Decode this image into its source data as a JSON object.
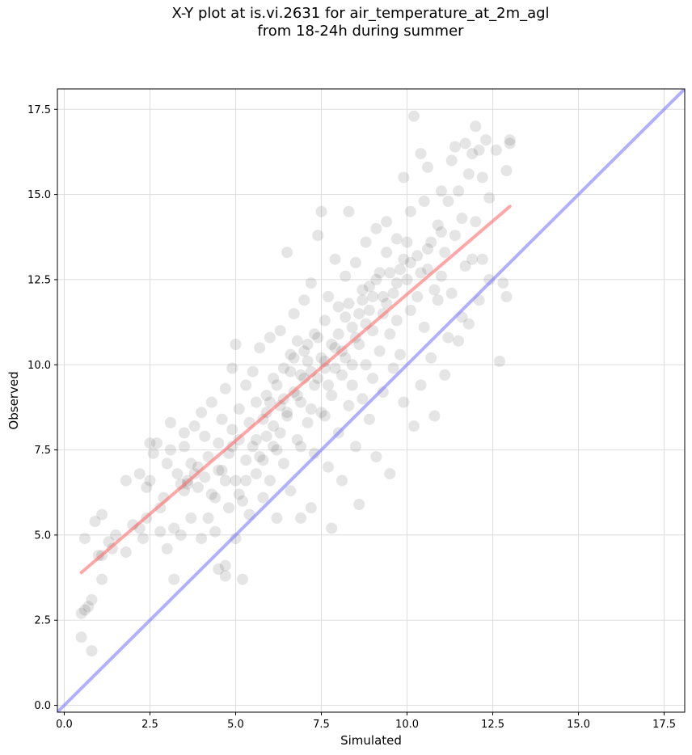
{
  "title": {
    "line1": "X-Y plot at is.vi.2631 for air_temperature_at_2m_agl",
    "line2": "from 18-24h during summer"
  },
  "chart_data": {
    "type": "scatter",
    "title": "X-Y plot at is.vi.2631 for air_temperature_at_2m_agl from 18-24h during summer",
    "xlabel": "Simulated",
    "ylabel": "Observed",
    "xlim": [
      -0.2,
      18.1
    ],
    "ylim": [
      -0.2,
      18.1
    ],
    "xticks": [
      "0.0",
      "2.5",
      "5.0",
      "7.5",
      "10.0",
      "12.5",
      "15.0",
      "17.5"
    ],
    "yticks": [
      "0.0",
      "2.5",
      "5.0",
      "7.5",
      "10.0",
      "12.5",
      "15.0",
      "17.5"
    ],
    "tick_values": [
      0,
      2.5,
      5,
      7.5,
      10,
      12.5,
      15,
      17.5
    ],
    "grid": true,
    "point_color": "#333333",
    "points": [
      [
        0.5,
        2.0
      ],
      [
        0.5,
        2.7
      ],
      [
        0.6,
        2.8
      ],
      [
        0.7,
        2.9
      ],
      [
        0.8,
        3.1
      ],
      [
        0.8,
        1.6
      ],
      [
        0.6,
        4.9
      ],
      [
        0.9,
        5.4
      ],
      [
        1.0,
        4.4
      ],
      [
        1.1,
        4.4
      ],
      [
        1.1,
        5.6
      ],
      [
        1.1,
        3.7
      ],
      [
        1.3,
        4.8
      ],
      [
        1.4,
        4.6
      ],
      [
        1.5,
        5.0
      ],
      [
        1.8,
        4.5
      ],
      [
        1.8,
        6.6
      ],
      [
        2.0,
        5.3
      ],
      [
        2.2,
        5.2
      ],
      [
        2.2,
        6.8
      ],
      [
        2.3,
        4.9
      ],
      [
        2.4,
        5.5
      ],
      [
        2.4,
        6.4
      ],
      [
        2.5,
        7.7
      ],
      [
        2.5,
        6.6
      ],
      [
        2.6,
        7.4
      ],
      [
        2.7,
        7.7
      ],
      [
        2.8,
        5.8
      ],
      [
        2.8,
        5.1
      ],
      [
        2.9,
        6.1
      ],
      [
        3.0,
        7.1
      ],
      [
        3.0,
        4.6
      ],
      [
        3.1,
        7.5
      ],
      [
        3.1,
        8.3
      ],
      [
        3.2,
        3.7
      ],
      [
        3.2,
        5.2
      ],
      [
        3.3,
        6.8
      ],
      [
        3.4,
        6.5
      ],
      [
        3.4,
        5.0
      ],
      [
        3.5,
        8.0
      ],
      [
        3.5,
        7.6
      ],
      [
        3.5,
        6.3
      ],
      [
        3.6,
        6.6
      ],
      [
        3.7,
        7.1
      ],
      [
        3.7,
        5.5
      ],
      [
        3.8,
        8.2
      ],
      [
        3.9,
        6.4
      ],
      [
        3.9,
        7.0
      ],
      [
        4.0,
        4.9
      ],
      [
        4.0,
        8.6
      ],
      [
        4.1,
        7.9
      ],
      [
        4.1,
        6.7
      ],
      [
        4.2,
        5.5
      ],
      [
        4.2,
        7.3
      ],
      [
        4.3,
        8.9
      ],
      [
        4.4,
        6.1
      ],
      [
        4.4,
        5.1
      ],
      [
        4.5,
        4.0
      ],
      [
        4.5,
        7.7
      ],
      [
        4.6,
        8.4
      ],
      [
        4.6,
        6.9
      ],
      [
        4.7,
        3.8
      ],
      [
        4.7,
        4.1
      ],
      [
        4.7,
        9.3
      ],
      [
        4.8,
        7.4
      ],
      [
        4.8,
        5.8
      ],
      [
        4.9,
        8.1
      ],
      [
        4.9,
        9.9
      ],
      [
        5.0,
        6.6
      ],
      [
        5.0,
        4.9
      ],
      [
        5.0,
        10.6
      ],
      [
        5.1,
        7.8
      ],
      [
        5.1,
        8.7
      ],
      [
        5.2,
        3.7
      ],
      [
        5.2,
        6.0
      ],
      [
        5.3,
        9.4
      ],
      [
        5.3,
        7.2
      ],
      [
        5.4,
        8.3
      ],
      [
        5.4,
        5.6
      ],
      [
        5.5,
        7.6
      ],
      [
        5.5,
        9.8
      ],
      [
        5.6,
        6.8
      ],
      [
        5.6,
        8.9
      ],
      [
        5.7,
        10.5
      ],
      [
        5.7,
        7.3
      ],
      [
        5.8,
        6.1
      ],
      [
        5.8,
        8.4
      ],
      [
        5.9,
        9.1
      ],
      [
        5.9,
        7.9
      ],
      [
        6.0,
        10.8
      ],
      [
        6.0,
        6.6
      ],
      [
        6.1,
        8.2
      ],
      [
        6.1,
        9.6
      ],
      [
        6.2,
        7.5
      ],
      [
        6.2,
        5.5
      ],
      [
        6.3,
        11.0
      ],
      [
        6.3,
        8.8
      ],
      [
        6.4,
        9.9
      ],
      [
        6.4,
        7.1
      ],
      [
        6.5,
        13.3
      ],
      [
        6.5,
        8.5
      ],
      [
        6.6,
        10.3
      ],
      [
        6.6,
        6.3
      ],
      [
        6.7,
        9.2
      ],
      [
        6.7,
        11.5
      ],
      [
        6.8,
        7.8
      ],
      [
        6.8,
        10.7
      ],
      [
        6.9,
        8.9
      ],
      [
        6.9,
        5.5
      ],
      [
        7.0,
        9.6
      ],
      [
        7.0,
        11.9
      ],
      [
        7.1,
        8.3
      ],
      [
        7.1,
        10.1
      ],
      [
        7.2,
        5.8
      ],
      [
        7.2,
        12.4
      ],
      [
        7.3,
        9.4
      ],
      [
        7.3,
        7.4
      ],
      [
        7.4,
        10.8
      ],
      [
        7.4,
        13.8
      ],
      [
        7.5,
        8.6
      ],
      [
        7.5,
        14.5
      ],
      [
        7.6,
        9.9
      ],
      [
        7.6,
        11.3
      ],
      [
        7.7,
        7.0
      ],
      [
        7.7,
        12.0
      ],
      [
        7.8,
        9.1
      ],
      [
        7.8,
        5.2
      ],
      [
        7.9,
        10.5
      ],
      [
        7.9,
        13.1
      ],
      [
        8.0,
        8.0
      ],
      [
        8.0,
        11.7
      ],
      [
        8.1,
        9.7
      ],
      [
        8.1,
        6.6
      ],
      [
        8.2,
        10.2
      ],
      [
        8.2,
        12.6
      ],
      [
        8.3,
        8.8
      ],
      [
        8.3,
        14.5
      ],
      [
        8.4,
        11.1
      ],
      [
        8.4,
        9.4
      ],
      [
        8.5,
        7.6
      ],
      [
        8.5,
        13.0
      ],
      [
        8.6,
        10.6
      ],
      [
        8.6,
        5.9
      ],
      [
        8.7,
        11.9
      ],
      [
        8.7,
        9.0
      ],
      [
        8.8,
        10.0
      ],
      [
        8.8,
        13.6
      ],
      [
        8.9,
        8.4
      ],
      [
        8.9,
        12.3
      ],
      [
        9.0,
        11.0
      ],
      [
        9.0,
        9.6
      ],
      [
        9.1,
        14.0
      ],
      [
        9.1,
        7.3
      ],
      [
        9.2,
        12.7
      ],
      [
        9.2,
        10.4
      ],
      [
        9.3,
        11.5
      ],
      [
        9.3,
        9.2
      ],
      [
        9.4,
        13.3
      ],
      [
        9.4,
        14.2
      ],
      [
        9.5,
        10.9
      ],
      [
        9.5,
        6.8
      ],
      [
        9.6,
        12.1
      ],
      [
        9.6,
        9.9
      ],
      [
        9.7,
        13.7
      ],
      [
        9.7,
        11.3
      ],
      [
        9.8,
        12.8
      ],
      [
        9.8,
        10.3
      ],
      [
        9.9,
        15.5
      ],
      [
        9.9,
        8.9
      ],
      [
        10.0,
        12.5
      ],
      [
        10.0,
        13.6
      ],
      [
        10.1,
        11.6
      ],
      [
        10.1,
        14.5
      ],
      [
        10.2,
        17.3
      ],
      [
        10.2,
        8.2
      ],
      [
        10.3,
        12.0
      ],
      [
        10.3,
        13.2
      ],
      [
        10.4,
        16.2
      ],
      [
        10.4,
        9.4
      ],
      [
        10.5,
        14.8
      ],
      [
        10.5,
        11.1
      ],
      [
        10.6,
        12.8
      ],
      [
        10.6,
        15.8
      ],
      [
        10.7,
        13.6
      ],
      [
        10.7,
        10.2
      ],
      [
        10.8,
        8.5
      ],
      [
        10.9,
        14.1
      ],
      [
        10.9,
        11.9
      ],
      [
        11.0,
        15.1
      ],
      [
        11.0,
        12.6
      ],
      [
        11.1,
        9.7
      ],
      [
        11.1,
        13.3
      ],
      [
        11.2,
        10.8
      ],
      [
        11.2,
        14.8
      ],
      [
        11.3,
        16.0
      ],
      [
        11.3,
        12.1
      ],
      [
        11.4,
        16.4
      ],
      [
        11.4,
        13.8
      ],
      [
        11.5,
        10.7
      ],
      [
        11.5,
        15.1
      ],
      [
        11.6,
        11.4
      ],
      [
        11.6,
        14.3
      ],
      [
        11.7,
        16.5
      ],
      [
        11.7,
        12.9
      ],
      [
        11.8,
        11.2
      ],
      [
        11.8,
        15.6
      ],
      [
        11.9,
        13.1
      ],
      [
        11.9,
        16.2
      ],
      [
        12.0,
        17.0
      ],
      [
        12.0,
        14.2
      ],
      [
        12.1,
        11.9
      ],
      [
        12.1,
        16.3
      ],
      [
        12.2,
        15.5
      ],
      [
        12.2,
        13.1
      ],
      [
        12.3,
        16.6
      ],
      [
        12.4,
        14.9
      ],
      [
        12.4,
        12.5
      ],
      [
        12.6,
        16.3
      ],
      [
        12.7,
        10.1
      ],
      [
        12.8,
        12.4
      ],
      [
        12.9,
        15.7
      ],
      [
        12.9,
        12.0
      ],
      [
        13.0,
        16.6
      ],
      [
        13.0,
        16.5
      ],
      [
        5.1,
        6.2
      ],
      [
        5.3,
        6.6
      ],
      [
        6.3,
        8.0
      ],
      [
        6.5,
        8.6
      ],
      [
        6.8,
        9.1
      ],
      [
        6.9,
        9.7
      ],
      [
        7.0,
        10.4
      ],
      [
        7.2,
        9.8
      ],
      [
        7.3,
        10.9
      ],
      [
        7.6,
        10.1
      ],
      [
        7.7,
        9.4
      ],
      [
        7.8,
        10.6
      ],
      [
        8.0,
        10.9
      ],
      [
        8.2,
        11.4
      ],
      [
        8.4,
        10.0
      ],
      [
        8.6,
        11.5
      ],
      [
        8.7,
        12.2
      ],
      [
        8.9,
        11.6
      ],
      [
        9.1,
        12.5
      ],
      [
        9.3,
        12.0
      ],
      [
        9.5,
        12.7
      ],
      [
        9.7,
        12.4
      ],
      [
        9.9,
        13.1
      ],
      [
        10.1,
        13.0
      ],
      [
        6.0,
        8.9
      ],
      [
        6.2,
        9.4
      ],
      [
        6.4,
        9.0
      ],
      [
        6.6,
        9.8
      ],
      [
        6.7,
        10.2
      ],
      [
        7.1,
        10.6
      ],
      [
        7.4,
        9.6
      ],
      [
        7.5,
        10.2
      ],
      [
        7.9,
        9.9
      ],
      [
        8.1,
        10.4
      ],
      [
        8.3,
        11.8
      ],
      [
        8.5,
        10.8
      ],
      [
        5.6,
        7.8
      ],
      [
        5.8,
        7.2
      ],
      [
        5.9,
        8.6
      ],
      [
        6.1,
        7.6
      ],
      [
        4.9,
        7.6
      ],
      [
        4.7,
        6.6
      ],
      [
        4.5,
        6.9
      ],
      [
        4.3,
        6.2
      ],
      [
        3.8,
        6.8
      ],
      [
        3.6,
        6.5
      ],
      [
        10.4,
        12.7
      ],
      [
        10.6,
        13.4
      ],
      [
        10.8,
        12.2
      ],
      [
        11.0,
        13.9
      ],
      [
        9.4,
        11.8
      ],
      [
        9.0,
        12.0
      ],
      [
        8.8,
        11.2
      ],
      [
        7.6,
        8.5
      ],
      [
        7.2,
        8.7
      ],
      [
        6.9,
        7.6
      ]
    ],
    "lines": [
      {
        "name": "regression",
        "color": "#ff6b6b",
        "x": [
          0.5,
          13.0
        ],
        "y": [
          3.9,
          14.65
        ]
      },
      {
        "name": "1:1 reference",
        "color": "#7b7bff",
        "x": [
          -0.2,
          18.1
        ],
        "y": [
          -0.2,
          18.1
        ]
      }
    ]
  }
}
